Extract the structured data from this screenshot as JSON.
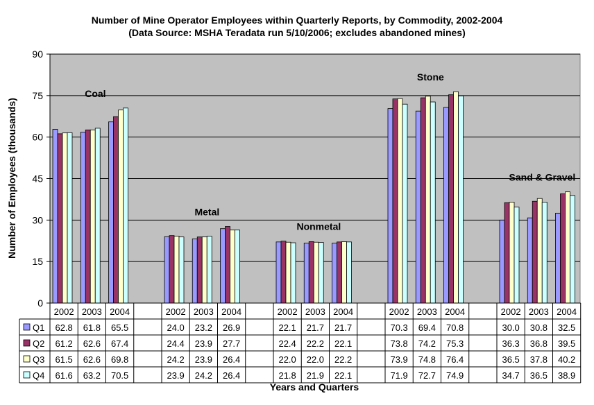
{
  "chart_data": {
    "type": "bar",
    "title": "Number of Mine Operator Employees within Quarterly Reports, by Commodity, 2002-2004",
    "subtitle": "(Data Source: MSHA Teradata run 5/10/2006; excludes abandoned mines)",
    "xlabel": "Years and Quarters",
    "ylabel": "Number of Employees (thousands)",
    "ylim": [
      0,
      90
    ],
    "yticks": [
      0,
      15,
      30,
      45,
      60,
      75,
      90
    ],
    "grid": true,
    "legend_placement": "data-table-left",
    "plot_background": "#c0c0c0",
    "groups": [
      {
        "label": "Coal",
        "years": [
          "2002",
          "2003",
          "2004"
        ]
      },
      {
        "label": "Metal",
        "years": [
          "2002",
          "2003",
          "2004"
        ]
      },
      {
        "label": "Nonmetal",
        "years": [
          "2002",
          "2003",
          "2004"
        ]
      },
      {
        "label": "Stone",
        "years": [
          "2002",
          "2003",
          "2004"
        ]
      },
      {
        "label": "Sand & Gravel",
        "years": [
          "2002",
          "2003",
          "2004"
        ]
      }
    ],
    "series": [
      {
        "name": "Q1",
        "color": "#9999ff",
        "values": [
          [
            62.8,
            61.8,
            65.5
          ],
          [
            24.0,
            23.2,
            26.9
          ],
          [
            22.1,
            21.7,
            21.7
          ],
          [
            70.3,
            69.4,
            70.8
          ],
          [
            30.0,
            30.8,
            32.5
          ]
        ]
      },
      {
        "name": "Q2",
        "color": "#993366",
        "values": [
          [
            61.2,
            62.6,
            67.4
          ],
          [
            24.4,
            23.9,
            27.7
          ],
          [
            22.4,
            22.2,
            22.1
          ],
          [
            73.8,
            74.2,
            75.3
          ],
          [
            36.3,
            36.8,
            39.5
          ]
        ]
      },
      {
        "name": "Q3",
        "color": "#ffffcc",
        "values": [
          [
            61.5,
            62.6,
            69.8
          ],
          [
            24.2,
            23.9,
            26.4
          ],
          [
            22.0,
            22.0,
            22.2
          ],
          [
            73.9,
            74.8,
            76.4
          ],
          [
            36.5,
            37.8,
            40.2
          ]
        ]
      },
      {
        "name": "Q4",
        "color": "#ccffff",
        "values": [
          [
            61.6,
            63.2,
            70.5
          ],
          [
            23.9,
            24.2,
            26.4
          ],
          [
            21.8,
            21.9,
            22.1
          ],
          [
            71.9,
            72.7,
            74.9
          ],
          [
            34.7,
            36.5,
            38.9
          ]
        ]
      }
    ]
  }
}
